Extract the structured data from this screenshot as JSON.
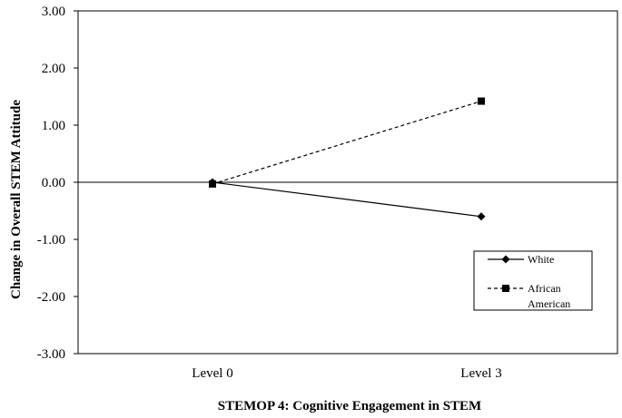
{
  "chart_data": {
    "type": "line",
    "categories": [
      "Level 0",
      "Level 3"
    ],
    "series": [
      {
        "name": "White",
        "values": [
          0.0,
          -0.6
        ],
        "style": "solid",
        "marker": "diamond",
        "color": "#000000"
      },
      {
        "name": "African American",
        "name_lines": [
          "African",
          "American"
        ],
        "values": [
          -0.03,
          1.42
        ],
        "style": "dashed",
        "marker": "square",
        "color": "#000000"
      }
    ],
    "yticks": [
      "3.00",
      "2.00",
      "1.00",
      "0.00",
      "-1.00",
      "-2.00",
      "-3.00"
    ],
    "ylim": [
      -3,
      3
    ],
    "xlabel": "STEMOP 4: Cognitive Engagement in STEM",
    "ylabel": "Change in Overall STEM Attitude",
    "legend_position": "right"
  }
}
